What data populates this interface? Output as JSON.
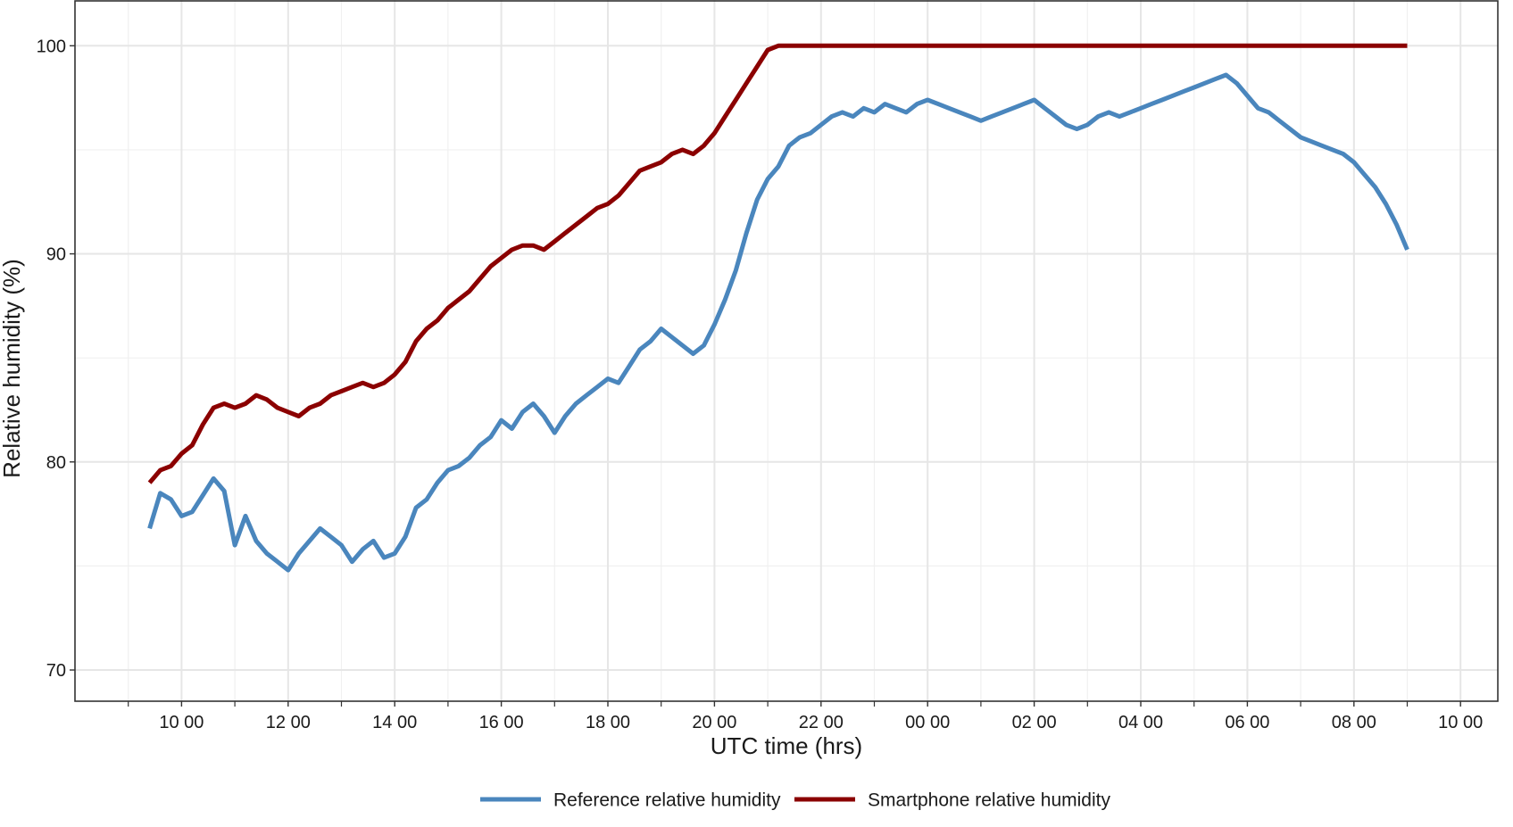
{
  "chart_data": {
    "type": "line",
    "xlabel": "UTC time (hrs)",
    "ylabel": "Relative humidity (%)",
    "ylim": [
      68.5,
      102.2
    ],
    "xlim": [
      8.0,
      34.7
    ],
    "grid": true,
    "legend_position": "bottom",
    "x_ticks": [
      {
        "value": 10,
        "label": "10 00"
      },
      {
        "value": 12,
        "label": "12 00"
      },
      {
        "value": 14,
        "label": "14 00"
      },
      {
        "value": 16,
        "label": "16 00"
      },
      {
        "value": 18,
        "label": "18 00"
      },
      {
        "value": 20,
        "label": "20 00"
      },
      {
        "value": 22,
        "label": "22 00"
      },
      {
        "value": 24,
        "label": "00 00"
      },
      {
        "value": 26,
        "label": "02 00"
      },
      {
        "value": 28,
        "label": "04 00"
      },
      {
        "value": 30,
        "label": "06 00"
      },
      {
        "value": 32,
        "label": "08 00"
      },
      {
        "value": 34,
        "label": "10 00"
      }
    ],
    "y_ticks": [
      {
        "value": 70,
        "label": "70"
      },
      {
        "value": 80,
        "label": "80"
      },
      {
        "value": 90,
        "label": "90"
      },
      {
        "value": 100,
        "label": "100"
      }
    ],
    "series": [
      {
        "name": "Reference relative humidity",
        "color": "#4a86bd",
        "x": [
          9.4,
          9.6,
          9.8,
          10.0,
          10.2,
          10.4,
          10.6,
          10.8,
          11.0,
          11.2,
          11.4,
          11.6,
          11.8,
          12.0,
          12.2,
          12.4,
          12.6,
          12.8,
          13.0,
          13.2,
          13.4,
          13.6,
          13.8,
          14.0,
          14.2,
          14.4,
          14.6,
          14.8,
          15.0,
          15.2,
          15.4,
          15.6,
          15.8,
          16.0,
          16.2,
          16.4,
          16.6,
          16.8,
          17.0,
          17.2,
          17.4,
          17.6,
          17.8,
          18.0,
          18.2,
          18.4,
          18.6,
          18.8,
          19.0,
          19.2,
          19.4,
          19.6,
          19.8,
          20.0,
          20.2,
          20.4,
          20.6,
          20.8,
          21.0,
          21.2,
          21.4,
          21.6,
          21.8,
          22.0,
          22.2,
          22.4,
          22.6,
          22.8,
          23.0,
          23.2,
          23.4,
          23.6,
          23.8,
          24.0,
          24.2,
          24.4,
          24.6,
          24.8,
          25.0,
          25.2,
          25.4,
          25.6,
          25.8,
          26.0,
          26.2,
          26.4,
          26.6,
          26.8,
          27.0,
          27.2,
          27.4,
          27.6,
          27.8,
          28.0,
          28.2,
          28.4,
          28.6,
          28.8,
          29.0,
          29.2,
          29.4,
          29.6,
          29.8,
          30.0,
          30.2,
          30.4,
          30.6,
          30.8,
          31.0,
          31.2,
          31.4,
          31.6,
          31.8,
          32.0,
          32.2,
          32.4,
          32.6,
          32.8,
          33.0
        ],
        "values": [
          76.8,
          78.5,
          78.2,
          77.4,
          77.6,
          78.4,
          79.2,
          78.6,
          76.0,
          77.4,
          76.2,
          75.6,
          75.2,
          74.8,
          75.6,
          76.2,
          76.8,
          76.4,
          76.0,
          75.2,
          75.8,
          76.2,
          75.4,
          75.6,
          76.4,
          77.8,
          78.2,
          79.0,
          79.6,
          79.8,
          80.2,
          80.8,
          81.2,
          82.0,
          81.6,
          82.4,
          82.8,
          82.2,
          81.4,
          82.2,
          82.8,
          83.2,
          83.6,
          84.0,
          83.8,
          84.6,
          85.4,
          85.8,
          86.4,
          86.0,
          85.6,
          85.2,
          85.6,
          86.6,
          87.8,
          89.2,
          91.0,
          92.6,
          93.6,
          94.2,
          95.2,
          95.6,
          95.8,
          96.2,
          96.6,
          96.8,
          96.6,
          97.0,
          96.8,
          97.2,
          97.0,
          96.8,
          97.2,
          97.4,
          97.2,
          97.0,
          96.8,
          96.6,
          96.4,
          96.6,
          96.8,
          97.0,
          97.2,
          97.4,
          97.0,
          96.6,
          96.2,
          96.0,
          96.2,
          96.6,
          96.8,
          96.6,
          96.8,
          97.0,
          97.2,
          97.4,
          97.6,
          97.8,
          98.0,
          98.2,
          98.4,
          98.6,
          98.2,
          97.6,
          97.0,
          96.8,
          96.4,
          96.0,
          95.6,
          95.4,
          95.2,
          95.0,
          94.8,
          94.4,
          93.8,
          93.2,
          92.4,
          91.4,
          90.2
        ]
      },
      {
        "name": "Smartphone relative humidity",
        "color": "#8b0000",
        "x": [
          9.4,
          9.6,
          9.8,
          10.0,
          10.2,
          10.4,
          10.6,
          10.8,
          11.0,
          11.2,
          11.4,
          11.6,
          11.8,
          12.0,
          12.2,
          12.4,
          12.6,
          12.8,
          13.0,
          13.2,
          13.4,
          13.6,
          13.8,
          14.0,
          14.2,
          14.4,
          14.6,
          14.8,
          15.0,
          15.2,
          15.4,
          15.6,
          15.8,
          16.0,
          16.2,
          16.4,
          16.6,
          16.8,
          17.0,
          17.2,
          17.4,
          17.6,
          17.8,
          18.0,
          18.2,
          18.4,
          18.6,
          18.8,
          19.0,
          19.2,
          19.4,
          19.6,
          19.8,
          20.0,
          20.2,
          20.4,
          20.6,
          20.8,
          21.0,
          21.2,
          21.8,
          23.0,
          25.0,
          27.0,
          29.0,
          31.0,
          33.0
        ],
        "values": [
          79.0,
          79.6,
          79.8,
          80.4,
          80.8,
          81.8,
          82.6,
          82.8,
          82.6,
          82.8,
          83.2,
          83.0,
          82.6,
          82.4,
          82.2,
          82.6,
          82.8,
          83.2,
          83.4,
          83.6,
          83.8,
          83.6,
          83.8,
          84.2,
          84.8,
          85.8,
          86.4,
          86.8,
          87.4,
          87.8,
          88.2,
          88.8,
          89.4,
          89.8,
          90.2,
          90.4,
          90.4,
          90.2,
          90.6,
          91.0,
          91.4,
          91.8,
          92.2,
          92.4,
          92.8,
          93.4,
          94.0,
          94.2,
          94.4,
          94.8,
          95.0,
          94.8,
          95.2,
          95.8,
          96.6,
          97.4,
          98.2,
          99.0,
          99.8,
          100.0,
          100.0,
          100.0,
          100.0,
          100.0,
          100.0,
          100.0,
          100.0
        ]
      }
    ]
  }
}
